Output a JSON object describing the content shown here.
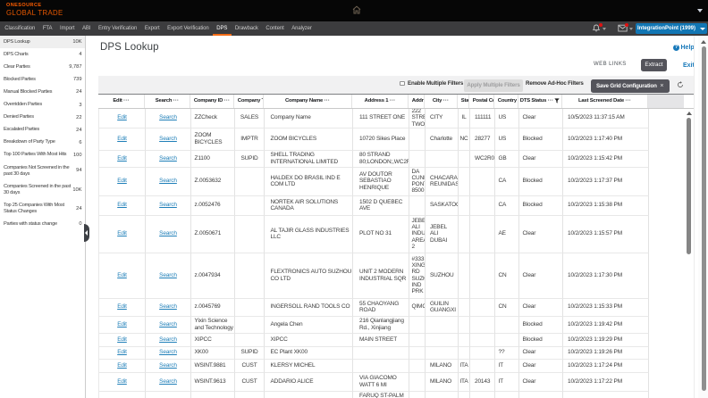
{
  "colors": {
    "brand_orange": "#ff5e00",
    "nav_active_underline": "#f26b15",
    "link_blue": "#1779ba",
    "account_button_blue": "#1176b4",
    "dark_button_gray": "#54545b",
    "notification_badge_red": "#e01212"
  },
  "topbar": {
    "brand_line1": "ONESOURCE",
    "brand_line2": "GLOBAL TRADE"
  },
  "navbar": {
    "items": [
      "Classification",
      "FTA",
      "Import",
      "ABI",
      "Entry Verification",
      "Export",
      "Export Verification",
      "DPS",
      "Drawback",
      "Content",
      "Analyzer"
    ],
    "active_item": "DPS",
    "account_button_label": "IntegrationPoint (1999)"
  },
  "sidebar": {
    "items": [
      {
        "label": "DPS Lookup",
        "count": "10K",
        "selected": true
      },
      {
        "label": "DPS Charts",
        "count": "4"
      },
      {
        "label": "Clear Parties",
        "count": "9,787"
      },
      {
        "label": "Blocked Parties",
        "count": "739"
      },
      {
        "label": "Manual Blocked Parties",
        "count": "24"
      },
      {
        "label": "Overridden Parties",
        "count": "3"
      },
      {
        "label": "Denied Parties",
        "count": "22"
      },
      {
        "label": "Escalated Parties",
        "count": "24"
      },
      {
        "label": "Breakdown of Party Type",
        "count": "6"
      },
      {
        "label": "Top 100 Parties With Most Hits",
        "count": "100"
      },
      {
        "label": "Companies Not Screened in the\npast 30 days",
        "count": "94"
      },
      {
        "label": "Companies Screened in the past\n30 days",
        "count": "10K"
      },
      {
        "label": "Top 25 Companies With Most\nStatus Changes",
        "count": "24"
      },
      {
        "label": "Parties with status change",
        "count": "0"
      }
    ]
  },
  "page": {
    "title": "DPS Lookup",
    "help_label": "Help",
    "web_links_label": "WEB LINKS",
    "extract_label": "Extract",
    "exit_label": "Exit"
  },
  "toolbar": {
    "enable_multiple_filters_label": "Enable Multiple Filters",
    "enable_multiple_filters_checked": false,
    "apply_multiple_filters_label": "Apply Multiple Filters",
    "remove_adhoc_filters_label": "Remove Ad-Hoc Filters",
    "save_grid_configuration_label": "Save Grid Configuration",
    "save_close_icon": "x",
    "refresh_icon": "refresh"
  },
  "grid": {
    "edit_label": "Edit",
    "search_label": "Search",
    "columns": [
      "Edit",
      "Search",
      "Company ID",
      "Company Type",
      "Company Name",
      "Address 1",
      "Address 2",
      "City",
      "State",
      "Postal Code",
      "Country",
      "DTS Status",
      "Last Screened Date"
    ],
    "filtered_column": "DTS Status",
    "rows": [
      {
        "company_id": "ZZCheck",
        "company_type": "SALES",
        "company_name": "Company Name",
        "address1": "111 STREET ONE",
        "address2": "222\nSTREET\nTWO",
        "city": "CITY",
        "state": "IL",
        "postal_code": "111111",
        "country": "US",
        "dts_status": "Clear",
        "last_screened_date": "10/5/2023 11:37:15 AM"
      },
      {
        "company_id": "ZOOM\nBICYCLES",
        "company_type": "IMPTR",
        "company_name": "ZOOM BICYCLES",
        "address1": "10720 Sikes Place",
        "address2": "",
        "city": "Charlotte",
        "state": "NC",
        "postal_code": "28277",
        "country": "US",
        "dts_status": "Blocked",
        "last_screened_date": "10/2/2023 1:17:40 PM"
      },
      {
        "company_id": "Z1100",
        "company_type": "SUPID",
        "company_name": "SHELL TRADING\nINTERNATIONAL LIMITED",
        "address1": "80 STRAND\n80;LONDON;,WC2R0",
        "address2": "",
        "city": "",
        "state": "",
        "postal_code": "WC2R0JU",
        "country": "GB",
        "dts_status": "Clear",
        "last_screened_date": "10/2/2023 1:15:42 PM"
      },
      {
        "company_id": "Z.0053632",
        "company_type": "",
        "company_name": "HALDEX DO BRASIL IND E\nCOM LTD",
        "address1": "AV DOUTOR\nSEBASTIAO\nHENRIQUE",
        "address2": "DA\nCUNHA\nPONTES\n8500",
        "city": "CHACARAS\nREUNIDAS",
        "state": "",
        "postal_code": "",
        "country": "CA",
        "dts_status": "Blocked",
        "last_screened_date": "10/2/2023 1:17:37 PM"
      },
      {
        "company_id": "z.0052476",
        "company_type": "",
        "company_name": "NORTEK AIR SOLUTIONS\nCANADA",
        "address1": "1502 D QUEBEC\nAVE",
        "address2": "",
        "city": "SASKATOON",
        "state": "",
        "postal_code": "",
        "country": "CA",
        "dts_status": "Blocked",
        "last_screened_date": "10/2/2023 1:15:38 PM"
      },
      {
        "company_id": "Z.0050671",
        "company_type": "",
        "company_name": "AL TAJIR GLASS INDUSTRIES\nLLC",
        "address1": "PLOT NO 31",
        "address2": "JEBEL\nALI\nINDUS\nAREA\n2",
        "city": "JEBEL\nALI\nDUBAI",
        "state": "",
        "postal_code": "",
        "country": "AE",
        "dts_status": "Clear",
        "last_screened_date": "10/2/2023 1:15:57 PM"
      },
      {
        "company_id": "z.0047934",
        "company_type": "",
        "company_name": "FLEXTRONICS AUTO SUZHOU\nCO LTD",
        "address1": "UNIT 2 MODERN\nINDUSTRIAL SQR",
        "address2": "#333\nXING\nRD\nSUZH\nIND\nPRK",
        "city": "SUZHOU",
        "state": "",
        "postal_code": "",
        "country": "CN",
        "dts_status": "Clear",
        "last_screened_date": "10/2/2023 1:17:30 PM"
      },
      {
        "company_id": "z.0045769",
        "company_type": "",
        "company_name": "INGERSOLL RAND TOOLS CO",
        "address1": "55 CHAOYANG\nROAD",
        "address2": "QIMO",
        "city": "GUILIN\nGUANGXI",
        "state": "",
        "postal_code": "",
        "country": "CN",
        "dts_status": "Clear",
        "last_screened_date": "10/2/2023 1:15:33 PM"
      },
      {
        "company_id": "Yixin Science\nand Technology",
        "company_type": "",
        "company_name": "Angela Chen",
        "address1": "216 Qianlangjiang\nRd., Xinjiang",
        "address2": "",
        "city": "",
        "state": "",
        "postal_code": "",
        "country": "",
        "dts_status": "Blocked",
        "last_screened_date": "10/2/2023 1:19:42 PM"
      },
      {
        "company_id": "XIPCC",
        "company_type": "",
        "company_name": "XIPCC",
        "address1": "MAIN STREET",
        "address2": "",
        "city": "",
        "state": "",
        "postal_code": "",
        "country": "",
        "dts_status": "Blocked",
        "last_screened_date": "10/2/2023 1:19:29 PM"
      },
      {
        "company_id": "XK00",
        "company_type": "SUPID",
        "company_name": "EC Plant XK00",
        "address1": "",
        "address2": "",
        "city": "",
        "state": "",
        "postal_code": "",
        "country": "??",
        "dts_status": "Clear",
        "last_screened_date": "10/2/2023 1:19:26 PM"
      },
      {
        "company_id": "WSINT.9881",
        "company_type": "CUST",
        "company_name": "KLERSY MICHEL",
        "address1": "",
        "address2": "",
        "city": "MILANO",
        "state": "ITA",
        "postal_code": "",
        "country": "IT",
        "dts_status": "Clear",
        "last_screened_date": "10/2/2023 1:17:24 PM"
      },
      {
        "company_id": "WSINT.9613",
        "company_type": "CUST",
        "company_name": "ADDARIO ALICE",
        "address1": "VIA GIACOMO\nWATT 6 MI",
        "address2": "",
        "city": "MILANO",
        "state": "ITA",
        "postal_code": "20143",
        "country": "IT",
        "dts_status": "Clear",
        "last_screened_date": "10/2/2023 1:17:22 PM"
      },
      {
        "company_id": "",
        "company_type": "",
        "company_name": "",
        "address1": "FARUQ ST-PALM",
        "address2": "",
        "city": "",
        "state": "",
        "postal_code": "",
        "country": "",
        "dts_status": "",
        "last_screened_date": ""
      }
    ]
  }
}
